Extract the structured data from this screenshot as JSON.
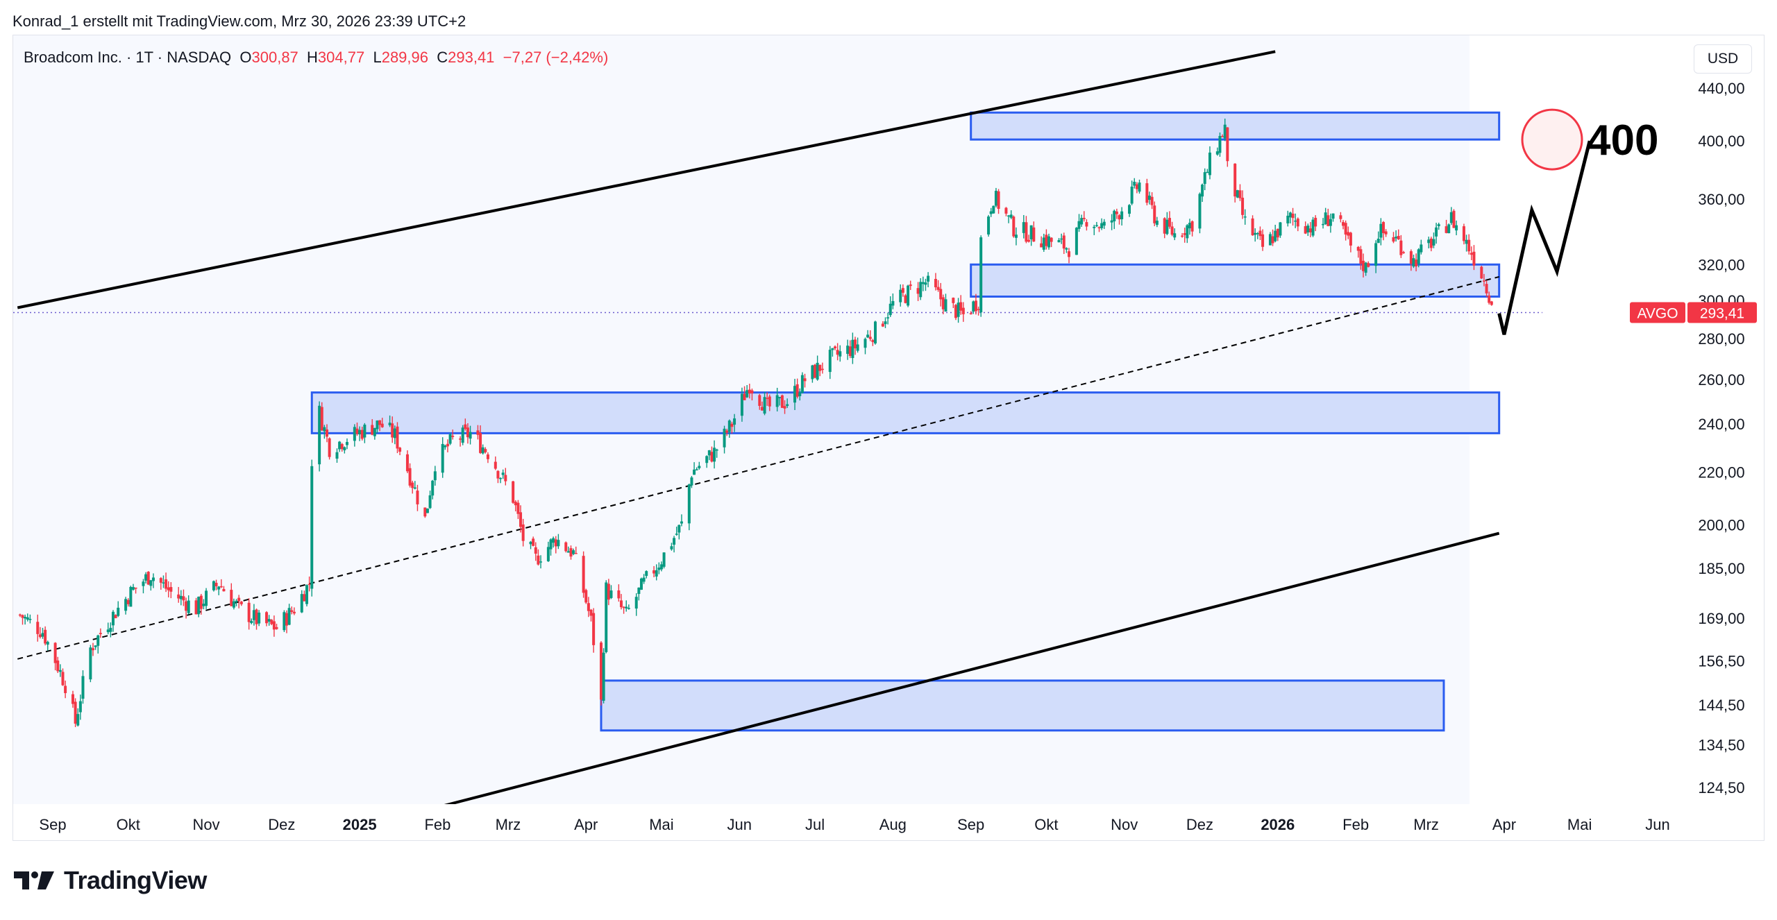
{
  "header": {
    "credit": "Konrad_1 erstellt mit TradingView.com, Mrz 30, 2026 23:39 UTC+2"
  },
  "legend": {
    "symbol": "Broadcom Inc. · 1T · NASDAQ",
    "open_label": "O",
    "open": "300,87",
    "high_label": "H",
    "high": "304,77",
    "low_label": "L",
    "low": "289,96",
    "close_label": "C",
    "close": "293,41",
    "change": "−7,27 (−2,42%)"
  },
  "currency": "USD",
  "price_tag": {
    "ticker": "AVGO",
    "value": "293,41"
  },
  "target_label": "400",
  "footer": {
    "brand": "TradingView"
  },
  "colors": {
    "up": "#089981",
    "down": "#f23645",
    "zone_fill": "#cdd9fb",
    "zone_stroke": "#2a5cf0",
    "price_line": "#6a5acd"
  },
  "chart_data": {
    "type": "candlestick",
    "y_scale": "log",
    "y_ticks": [
      "440,00",
      "400,00",
      "360,00",
      "320,00",
      "300,00",
      "280,00",
      "260,00",
      "240,00",
      "220,00",
      "200,00",
      "185,00",
      "169,00",
      "156,50",
      "144,50",
      "134,50",
      "124,50"
    ],
    "x_ticks": [
      {
        "label": "Sep",
        "date": "2024-09-01"
      },
      {
        "label": "Okt",
        "date": "2024-10-01"
      },
      {
        "label": "Nov",
        "date": "2024-11-01"
      },
      {
        "label": "Dez",
        "date": "2024-12-01"
      },
      {
        "label": "2025",
        "date": "2025-01-01",
        "bold": true
      },
      {
        "label": "Feb",
        "date": "2025-02-01"
      },
      {
        "label": "Mrz",
        "date": "2025-03-01"
      },
      {
        "label": "Apr",
        "date": "2025-04-01"
      },
      {
        "label": "Mai",
        "date": "2025-05-01"
      },
      {
        "label": "Jun",
        "date": "2025-06-01"
      },
      {
        "label": "Jul",
        "date": "2025-07-01"
      },
      {
        "label": "Aug",
        "date": "2025-08-01"
      },
      {
        "label": "Sep",
        "date": "2025-09-01"
      },
      {
        "label": "Okt",
        "date": "2025-10-01"
      },
      {
        "label": "Nov",
        "date": "2025-11-01"
      },
      {
        "label": "Dez",
        "date": "2025-12-01"
      },
      {
        "label": "2026",
        "date": "2026-01-01",
        "bold": true
      },
      {
        "label": "Feb",
        "date": "2026-02-01"
      },
      {
        "label": "Mrz",
        "date": "2026-03-01"
      },
      {
        "label": "Apr",
        "date": "2026-04-01"
      },
      {
        "label": "Mai",
        "date": "2026-05-01"
      },
      {
        "label": "Jun",
        "date": "2026-06-01"
      }
    ],
    "x_range": [
      "2024-08-18",
      "2026-06-20"
    ],
    "y_range": [
      118,
      470
    ],
    "price_path": [
      [
        "2024-08-19",
        170
      ],
      [
        "2024-08-28",
        165
      ],
      [
        "2024-09-06",
        150
      ],
      [
        "2024-09-10",
        140
      ],
      [
        "2024-09-16",
        160
      ],
      [
        "2024-09-25",
        170
      ],
      [
        "2024-10-03",
        178
      ],
      [
        "2024-10-10",
        183
      ],
      [
        "2024-10-18",
        177
      ],
      [
        "2024-10-28",
        172
      ],
      [
        "2024-11-06",
        180
      ],
      [
        "2024-11-14",
        172
      ],
      [
        "2024-11-22",
        168
      ],
      [
        "2024-11-29",
        166
      ],
      [
        "2024-12-06",
        172
      ],
      [
        "2024-12-12",
        180
      ],
      [
        "2024-12-13",
        225
      ],
      [
        "2024-12-16",
        245
      ],
      [
        "2024-12-20",
        230
      ],
      [
        "2024-12-31",
        236
      ],
      [
        "2025-01-09",
        240
      ],
      [
        "2025-01-15",
        235
      ],
      [
        "2025-01-27",
        202
      ],
      [
        "2025-01-31",
        224
      ],
      [
        "2025-02-07",
        233
      ],
      [
        "2025-02-14",
        236
      ],
      [
        "2025-02-21",
        228
      ],
      [
        "2025-03-03",
        210
      ],
      [
        "2025-03-07",
        195
      ],
      [
        "2025-03-12",
        188
      ],
      [
        "2025-03-20",
        195
      ],
      [
        "2025-03-27",
        190
      ],
      [
        "2025-04-03",
        168
      ],
      [
        "2025-04-07",
        145
      ],
      [
        "2025-04-09",
        178
      ],
      [
        "2025-04-17",
        170
      ],
      [
        "2025-04-24",
        180
      ],
      [
        "2025-05-01",
        188
      ],
      [
        "2025-05-09",
        200
      ],
      [
        "2025-05-13",
        220
      ],
      [
        "2025-05-22",
        228
      ],
      [
        "2025-05-29",
        240
      ],
      [
        "2025-06-05",
        258
      ],
      [
        "2025-06-12",
        247
      ],
      [
        "2025-06-20",
        250
      ],
      [
        "2025-06-27",
        260
      ],
      [
        "2025-07-07",
        270
      ],
      [
        "2025-07-17",
        276
      ],
      [
        "2025-07-25",
        284
      ],
      [
        "2025-08-01",
        298
      ],
      [
        "2025-08-08",
        305
      ],
      [
        "2025-08-14",
        310
      ],
      [
        "2025-08-22",
        298
      ],
      [
        "2025-08-29",
        292
      ],
      [
        "2025-09-04",
        300
      ],
      [
        "2025-09-05",
        335
      ],
      [
        "2025-09-10",
        362
      ],
      [
        "2025-09-18",
        342
      ],
      [
        "2025-09-30",
        335
      ],
      [
        "2025-10-10",
        330
      ],
      [
        "2025-10-17",
        348
      ],
      [
        "2025-10-24",
        342
      ],
      [
        "2025-10-31",
        354
      ],
      [
        "2025-11-07",
        370
      ],
      [
        "2025-11-14",
        346
      ],
      [
        "2025-11-21",
        338
      ],
      [
        "2025-11-28",
        345
      ],
      [
        "2025-12-05",
        385
      ],
      [
        "2025-12-11",
        410
      ],
      [
        "2025-12-12",
        380
      ],
      [
        "2025-12-19",
        345
      ],
      [
        "2025-12-26",
        330
      ],
      [
        "2026-01-06",
        348
      ],
      [
        "2026-01-15",
        342
      ],
      [
        "2026-01-23",
        350
      ],
      [
        "2026-01-30",
        330
      ],
      [
        "2026-02-05",
        318
      ],
      [
        "2026-02-10",
        340
      ],
      [
        "2026-02-17",
        335
      ],
      [
        "2026-02-24",
        322
      ],
      [
        "2026-03-04",
        335
      ],
      [
        "2026-03-11",
        348
      ],
      [
        "2026-03-18",
        330
      ],
      [
        "2026-03-23",
        315
      ],
      [
        "2026-03-27",
        300
      ],
      [
        "2026-03-30",
        293
      ]
    ],
    "zones": [
      {
        "from": "2025-09-01",
        "to": "2026-03-30",
        "low": 401,
        "high": 421
      },
      {
        "from": "2025-09-01",
        "to": "2026-03-30",
        "low": 302,
        "high": 320
      },
      {
        "from": "2024-12-13",
        "to": "2026-03-30",
        "low": 236,
        "high": 254
      },
      {
        "from": "2025-04-07",
        "to": "2026-03-08",
        "low": 138,
        "high": 151
      }
    ],
    "channel_upper": [
      [
        "2024-08-18",
        296
      ],
      [
        "2025-12-31",
        470
      ]
    ],
    "channel_lower": [
      [
        "2025-01-31",
        120
      ],
      [
        "2026-03-30",
        197
      ]
    ],
    "midline": [
      [
        "2024-08-18",
        157
      ],
      [
        "2026-03-30",
        313
      ]
    ],
    "projection": [
      [
        "2026-03-30",
        293
      ],
      [
        "2026-04-01",
        282
      ],
      [
        "2026-04-12",
        353
      ],
      [
        "2026-04-22",
        316
      ],
      [
        "2026-05-05",
        400
      ]
    ],
    "last_price": 293.41,
    "target": 400
  }
}
